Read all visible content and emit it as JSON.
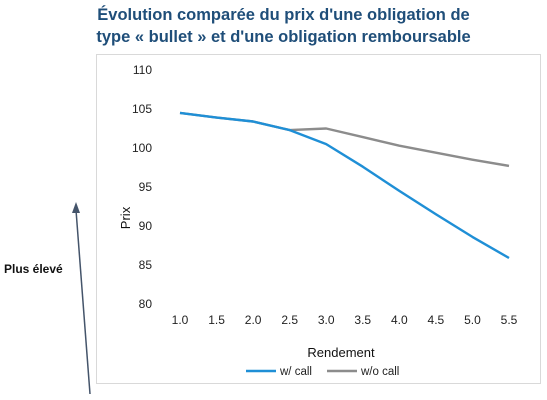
{
  "title_lines": [
    "Évolution comparée du prix d'une obligation de",
    "type « bullet » et d'une obligation remboursable"
  ],
  "side_label": "Plus élevé",
  "chart_data": {
    "type": "line",
    "title": "Évolution comparée du prix d'une obligation de type « bullet » et d'une obligation remboursable",
    "xlabel": "Rendement",
    "ylabel": "Prix",
    "x": [
      1.0,
      1.5,
      2.0,
      2.5,
      3.0,
      3.5,
      4.0,
      4.5,
      5.0,
      5.5
    ],
    "x_tick_labels": [
      "1.0",
      "1.5",
      "2.0",
      "2.5",
      "3.0",
      "3.5",
      "4.0",
      "4.5",
      "5.0",
      "5.5"
    ],
    "y_ticks": [
      80,
      85,
      90,
      95,
      100,
      105,
      110
    ],
    "ylim": [
      80,
      110
    ],
    "grid": false,
    "legend_position": "bottom",
    "series": [
      {
        "name": "w/ call",
        "color": "#1f8fd6",
        "values": [
          104.5,
          103.9,
          103.4,
          102.3,
          100.5,
          97.6,
          94.5,
          91.5,
          88.6,
          85.9
        ]
      },
      {
        "name": "w/o call",
        "color": "#8c8c8c",
        "values": [
          104.5,
          103.9,
          103.4,
          102.3,
          102.5,
          101.4,
          100.3,
          99.4,
          98.5,
          97.7
        ]
      }
    ]
  }
}
